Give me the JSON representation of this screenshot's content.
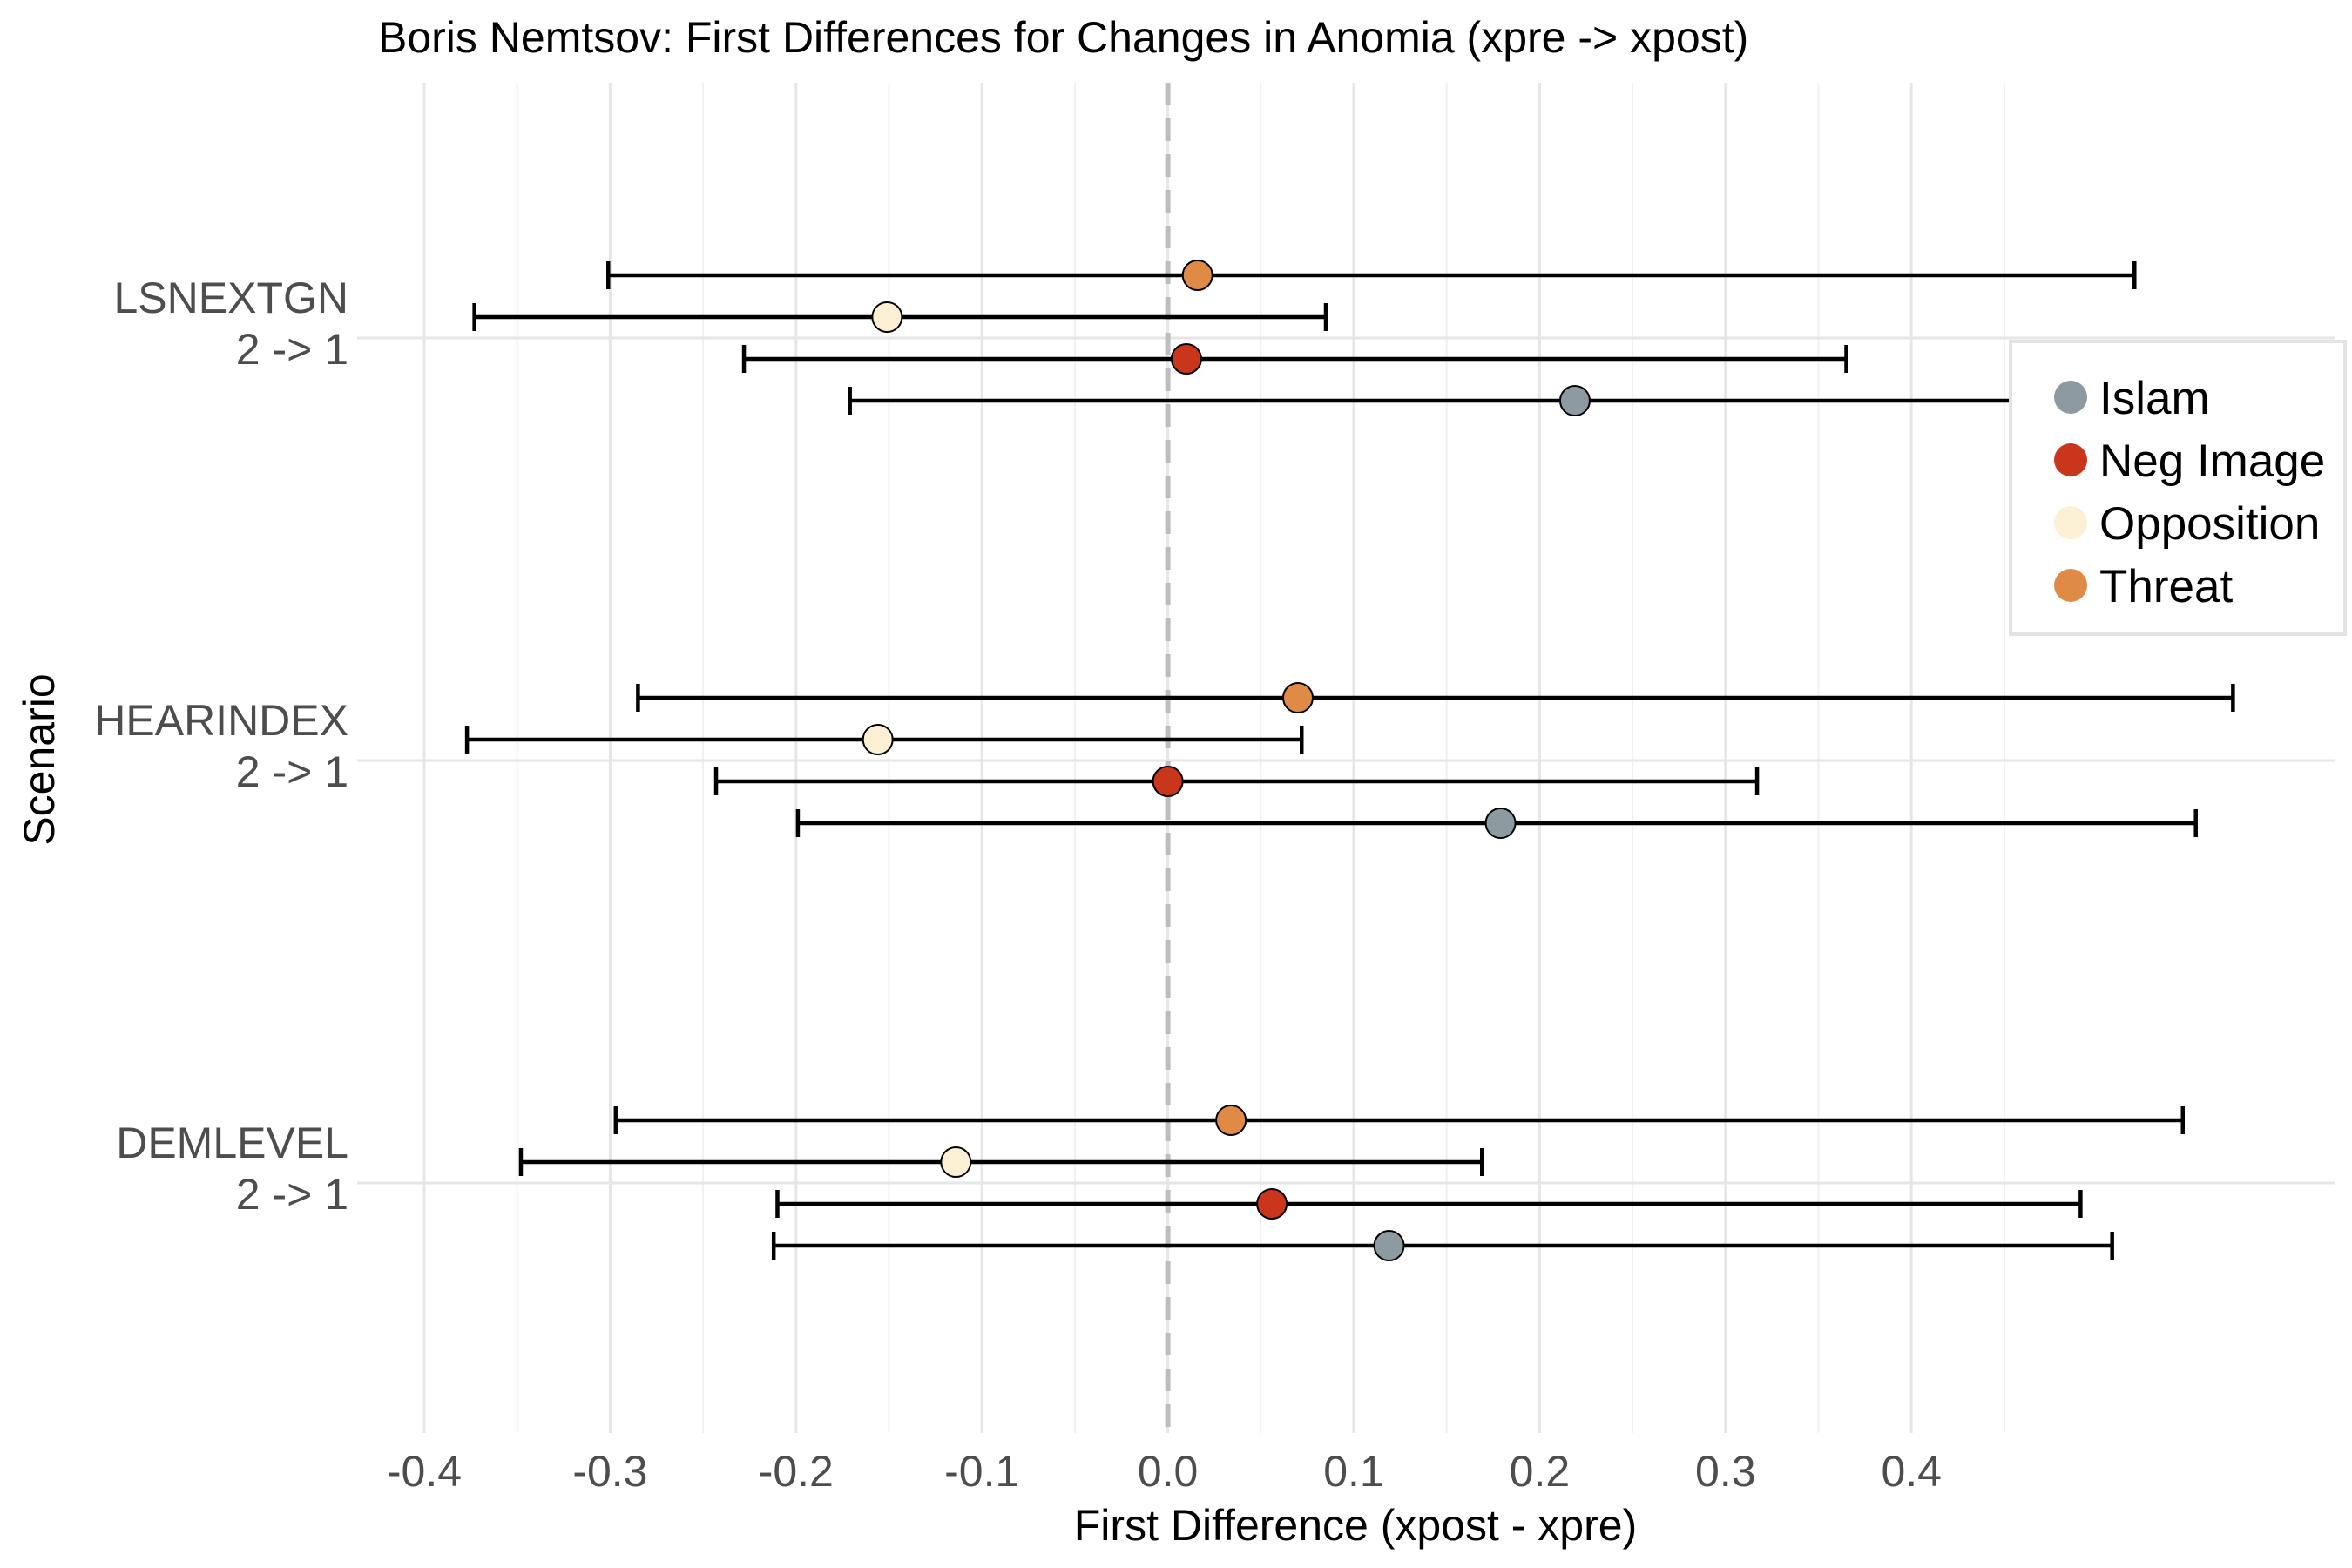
{
  "chart_data": {
    "type": "scatter",
    "title": "Boris Nemtsov: First Differences for Changes in Anomia (xpre -> xpost)",
    "xlabel": "First Difference (xpost - xpre)",
    "ylabel": "Scenario",
    "xlim": [
      -0.4,
      0.5
    ],
    "x_ticks": [
      -0.4,
      -0.3,
      -0.2,
      -0.1,
      0.0,
      0.1,
      0.2,
      0.3,
      0.4
    ],
    "x_tick_labels": [
      "-0.4",
      "-0.3",
      "-0.2",
      "-0.1",
      "0.0",
      "0.1",
      "0.2",
      "0.3",
      "0.4"
    ],
    "reference_line": {
      "x": 0,
      "style": "dashed",
      "color": "#bebebe"
    },
    "grid": true,
    "legend_position": "right",
    "categories": [
      {
        "line1": "LSNEXTGN",
        "line2": "2 -> 1"
      },
      {
        "line1": "HEARINDEX",
        "line2": "2 -> 1"
      },
      {
        "line1": "DEMLEVEL",
        "line2": "2 -> 1"
      }
    ],
    "series": [
      {
        "name": "Threat",
        "color": "#df8a45",
        "estimate": [
          0.016,
          0.07,
          0.034
        ],
        "lower": [
          -0.301,
          -0.285,
          -0.297
        ],
        "upper": [
          0.52,
          0.573,
          0.546
        ]
      },
      {
        "name": "Opposition",
        "color": "#fbf0d4",
        "estimate": [
          -0.151,
          -0.156,
          -0.114
        ],
        "lower": [
          -0.373,
          -0.377,
          -0.348
        ],
        "upper": [
          0.085,
          0.072,
          0.169
        ]
      },
      {
        "name": "Neg Image",
        "color": "#c9361b",
        "estimate": [
          0.01,
          0.0,
          0.056
        ],
        "lower": [
          -0.228,
          -0.243,
          -0.21
        ],
        "upper": [
          0.365,
          0.317,
          0.491
        ]
      },
      {
        "name": "Islam",
        "color": "#8d9ba1",
        "estimate": [
          0.219,
          0.179,
          0.119
        ],
        "lower": [
          -0.171,
          -0.199,
          -0.212
        ],
        "upper": [
          0.495,
          0.553,
          0.508
        ]
      }
    ]
  }
}
